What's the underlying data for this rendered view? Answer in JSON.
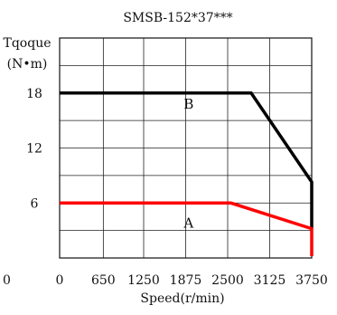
{
  "chart_data": {
    "type": "line",
    "title": "SMSB-152*37***",
    "ylabel_line1": "Tqoque",
    "ylabel_line2": "(N•m)",
    "xlabel": "Speed(r/min)",
    "x_ticks": [
      0,
      650,
      1250,
      1875,
      2500,
      3125,
      3750
    ],
    "y_ticks": [
      6,
      12,
      18
    ],
    "y_ticks_shown": [
      "6",
      "12",
      "18"
    ],
    "x_tick_labels": [
      "0",
      "650",
      "1250",
      "1875",
      "2500",
      "3125",
      "3750"
    ],
    "stray_label": "0",
    "xlim": [
      0,
      3750
    ],
    "ylim": [
      0,
      24
    ],
    "grid": true,
    "series": [
      {
        "name": "B",
        "color": "#000000",
        "points": [
          [
            0,
            18
          ],
          [
            2850,
            18
          ],
          [
            3750,
            8.3
          ],
          [
            3750,
            3.2
          ]
        ]
      },
      {
        "name": "A",
        "color": "#ff0000",
        "points": [
          [
            0,
            6
          ],
          [
            2550,
            6
          ],
          [
            3750,
            3.2
          ],
          [
            3750,
            0.2
          ]
        ]
      }
    ],
    "series_labels": [
      {
        "text": "B",
        "x": 1920,
        "y": 16.3
      },
      {
        "text": "A",
        "x": 1920,
        "y": 3.3
      }
    ]
  }
}
